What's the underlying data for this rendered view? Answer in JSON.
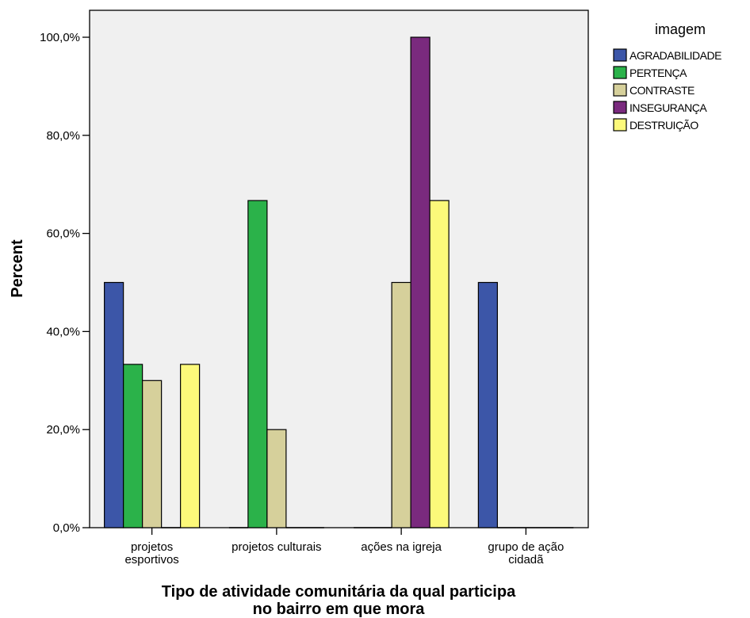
{
  "chart_data": {
    "type": "bar",
    "title": "",
    "xlabel_lines": [
      "Tipo de atividade comunitária da qual participa",
      "no bairro em que mora"
    ],
    "ylabel": "Percent",
    "ylim": [
      0,
      100
    ],
    "yticks": [
      0,
      20,
      40,
      60,
      80,
      100
    ],
    "ytick_labels": [
      "0,0%",
      "20,0%",
      "40,0%",
      "60,0%",
      "80,0%",
      "100,0%"
    ],
    "categories": [
      [
        "projetos",
        "esportivos"
      ],
      [
        "projetos culturais"
      ],
      [
        "ações na igreja"
      ],
      [
        "grupo de ação",
        "cidadã"
      ]
    ],
    "legend_title": "imagem",
    "legend_position": "right",
    "grid": false,
    "series": [
      {
        "name": "AGRADABILIDADE",
        "color": "#3c56a8",
        "values": [
          50,
          0,
          0,
          50
        ]
      },
      {
        "name": "PERTENÇA",
        "color": "#2bb24a",
        "values": [
          33.3,
          66.7,
          0,
          0
        ]
      },
      {
        "name": "CONTRASTE",
        "color": "#d6d09b",
        "values": [
          30,
          20,
          50,
          0
        ]
      },
      {
        "name": "INSEGURANÇA",
        "color": "#7a2a7e",
        "values": [
          0,
          0,
          100,
          0
        ]
      },
      {
        "name": "DESTRUIÇÃO",
        "color": "#fcf97a",
        "values": [
          33.3,
          0,
          66.7,
          0
        ]
      }
    ],
    "plot_background": "#f0f0f0"
  }
}
